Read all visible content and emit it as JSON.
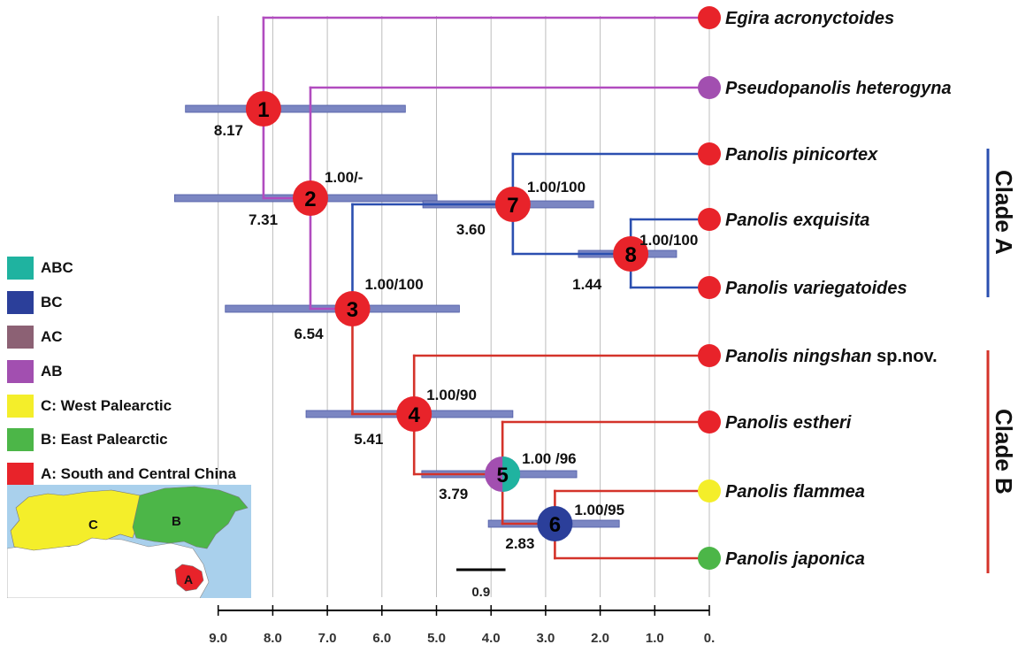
{
  "colors": {
    "A": "#e8232a",
    "B": "#4cb648",
    "C": "#f4ee2a",
    "AB": "#a24fb0",
    "AC": "#8c6174",
    "BC": "#2b3f9a",
    "ABC": "#1fb3a0",
    "clade_a": "#2b4fb0",
    "clade_b": "#d4332a",
    "outgroup": "#b14cbf",
    "hpd_bar": "#7b86c2",
    "grid": "#bdbdbd",
    "map_sea": "#a9d0ec"
  },
  "taxa": [
    {
      "name": "Egira acronyctoides",
      "suffix": "",
      "area": "A"
    },
    {
      "name": "Pseudopanolis heterogyna",
      "suffix": "",
      "area": "AB"
    },
    {
      "name": "Panolis pinicortex",
      "suffix": "",
      "area": "A"
    },
    {
      "name": "Panolis exquisita",
      "suffix": "",
      "area": "A"
    },
    {
      "name": "Panolis variegatoides",
      "suffix": "",
      "area": "A"
    },
    {
      "name": "Panolis ningshan",
      "suffix": " sp.nov.",
      "area": "A"
    },
    {
      "name": "Panolis estheri",
      "suffix": "",
      "area": "A"
    },
    {
      "name": "Panolis flammea",
      "suffix": "",
      "area": "C"
    },
    {
      "name": "Panolis japonica",
      "suffix": "",
      "area": "B"
    }
  ],
  "nodes": [
    {
      "id": "1",
      "age": 8.17,
      "age_label": "8.17",
      "support": "",
      "hpd": [
        9.6,
        5.57
      ],
      "area": "A"
    },
    {
      "id": "2",
      "age": 7.31,
      "age_label": "7.31",
      "support": "1.00/-",
      "hpd": [
        9.8,
        4.99
      ],
      "area": "A"
    },
    {
      "id": "3",
      "age": 6.54,
      "age_label": "6.54",
      "support": "1.00/100",
      "hpd": [
        8.87,
        4.58
      ],
      "area": "A"
    },
    {
      "id": "4",
      "age": 5.41,
      "age_label": "5.41",
      "support": "1.00/90",
      "hpd": [
        7.39,
        3.6
      ],
      "area": "A"
    },
    {
      "id": "5",
      "age": 3.79,
      "age_label": "3.79",
      "support": "1.00 /96",
      "hpd": [
        5.27,
        2.43
      ],
      "area": "AB+ABC"
    },
    {
      "id": "6",
      "age": 2.83,
      "age_label": "2.83",
      "support": "1.00/95",
      "hpd": [
        4.05,
        1.65
      ],
      "area": "BC"
    },
    {
      "id": "7",
      "age": 3.6,
      "age_label": "3.60",
      "support": "1.00/100",
      "hpd": [
        5.25,
        2.12
      ],
      "area": "A"
    },
    {
      "id": "8",
      "age": 1.44,
      "age_label": "1.44",
      "support": "1.00/100",
      "hpd": [
        2.4,
        0.6
      ],
      "area": "A"
    }
  ],
  "clades": [
    {
      "label": "Clade A"
    },
    {
      "label": "Clade B"
    }
  ],
  "legend": [
    {
      "label": "ABC",
      "key": "ABC"
    },
    {
      "label": "BC",
      "key": "BC"
    },
    {
      "label": "AC",
      "key": "AC"
    },
    {
      "label": "AB",
      "key": "AB"
    },
    {
      "label": "C: West Palearctic",
      "key": "C"
    },
    {
      "label": "B: East Palearctic",
      "key": "B"
    },
    {
      "label": "A: South and Central China",
      "key": "A"
    }
  ],
  "map": {
    "labels": [
      "C",
      "B",
      "A"
    ]
  },
  "scale_bar": {
    "label": "0.9"
  },
  "axis": {
    "min": 0,
    "max": 9,
    "ticks": [
      {
        "value": 9,
        "label": "9.0"
      },
      {
        "value": 8,
        "label": "8.0"
      },
      {
        "value": 7,
        "label": "7.0"
      },
      {
        "value": 6,
        "label": "6.0"
      },
      {
        "value": 5,
        "label": "5.0"
      },
      {
        "value": 4,
        "label": "4.0"
      },
      {
        "value": 3,
        "label": "3.0"
      },
      {
        "value": 2,
        "label": "2.0"
      },
      {
        "value": 1,
        "label": "1.0"
      },
      {
        "value": 0,
        "label": "0."
      }
    ]
  }
}
